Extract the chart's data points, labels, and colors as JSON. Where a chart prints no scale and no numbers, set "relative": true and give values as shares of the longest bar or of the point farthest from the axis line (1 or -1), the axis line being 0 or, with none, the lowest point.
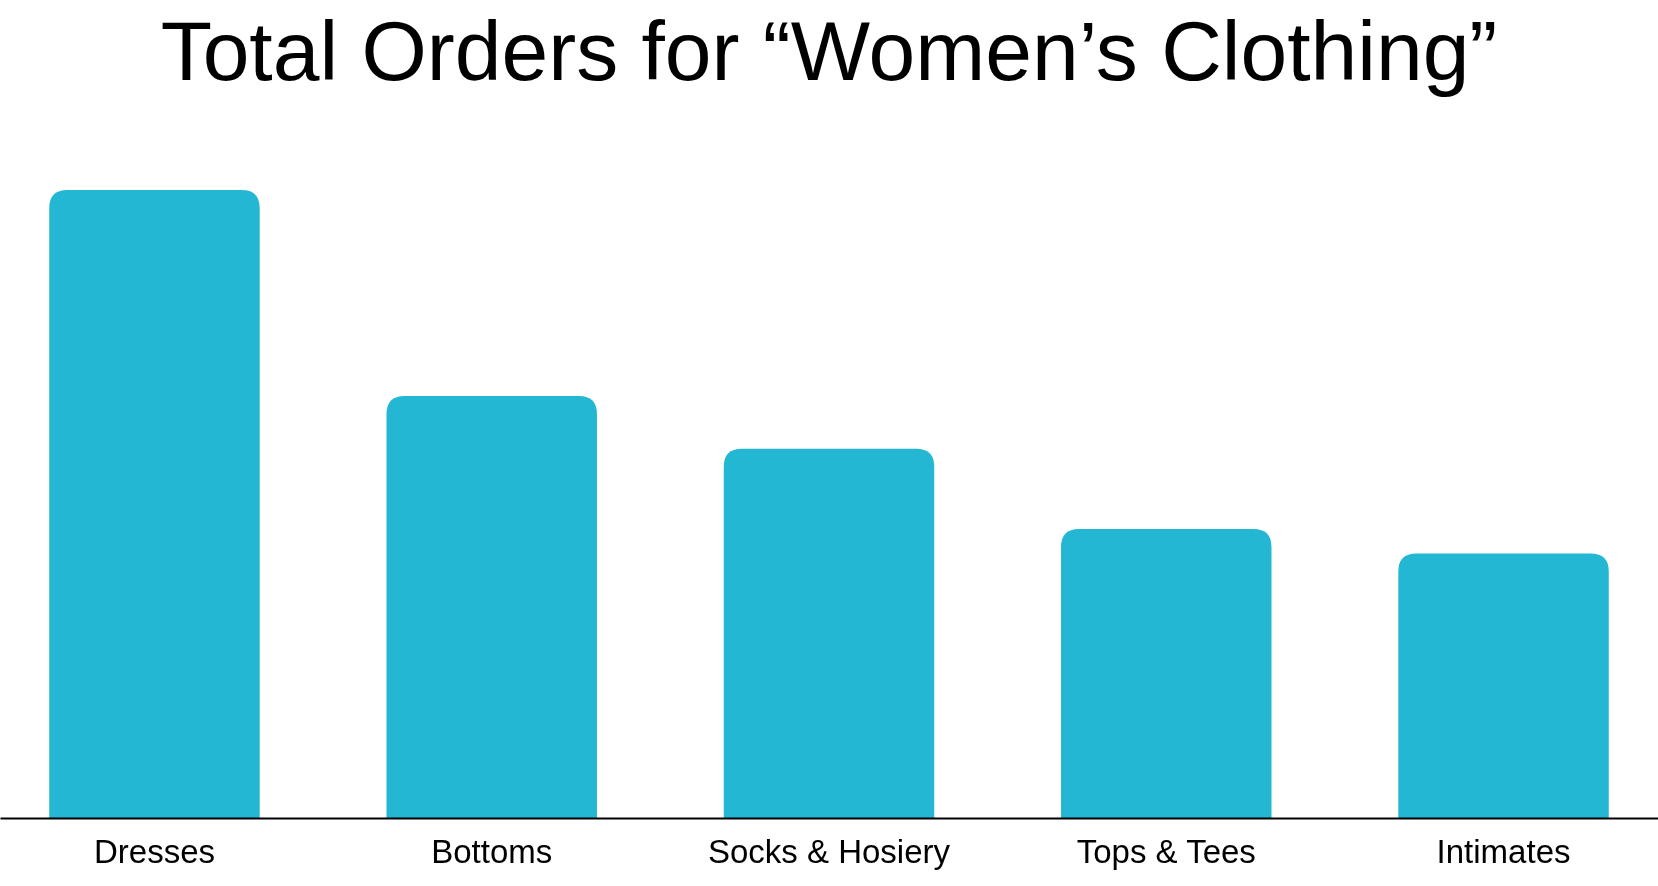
{
  "chart_data": {
    "type": "bar",
    "title": "Total Orders for “Women’s Clothing”",
    "categories": [
      "Dresses",
      "Bottoms",
      "Socks & Hosiery",
      "Tops & Tees",
      "Intimates"
    ],
    "values": [
      1,
      0.672,
      0.588,
      0.46,
      0.421
    ],
    "color": "#23b7d4",
    "relative": true
  }
}
